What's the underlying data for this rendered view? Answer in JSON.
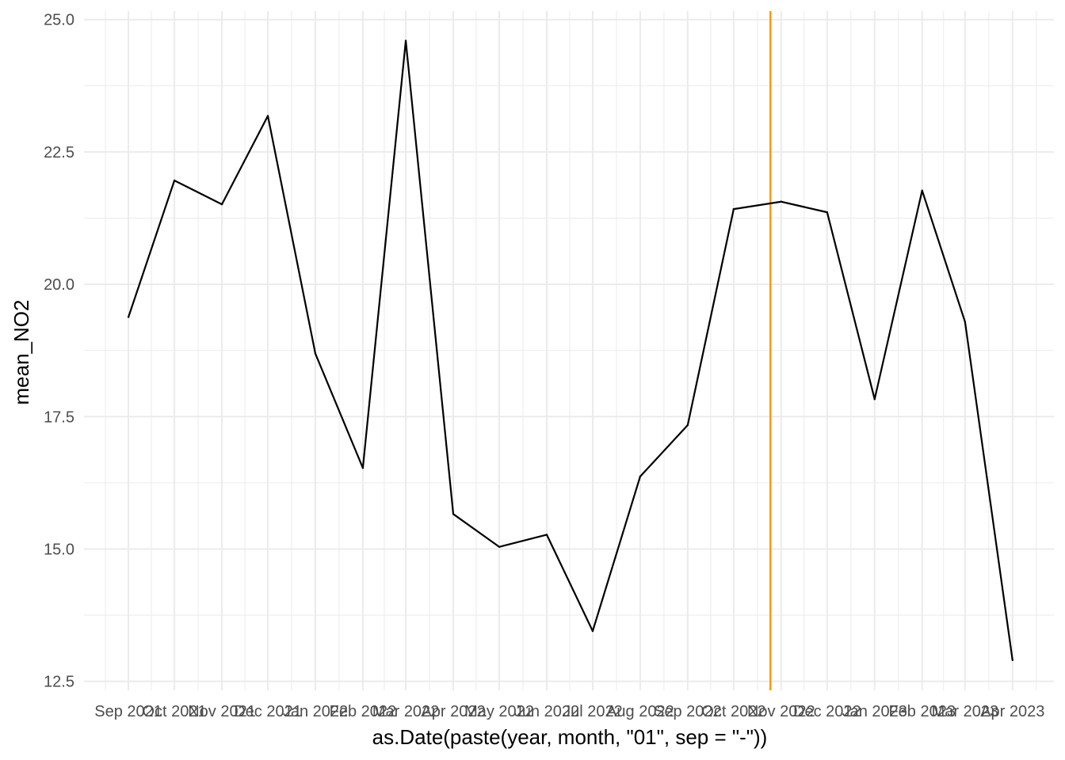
{
  "chart_data": {
    "type": "line",
    "xlabel": "as.Date(paste(year, month, \"01\", sep = \"-\"))",
    "ylabel": "mean_NO2",
    "x_is_date": true,
    "x": [
      "2021-09-01",
      "2021-10-01",
      "2021-11-01",
      "2021-12-01",
      "2022-01-01",
      "2022-02-01",
      "2022-03-01",
      "2022-04-01",
      "2022-05-01",
      "2022-06-01",
      "2022-07-01",
      "2022-08-01",
      "2022-09-01",
      "2022-10-01",
      "2022-11-01",
      "2022-12-01",
      "2023-01-01",
      "2023-02-01",
      "2023-03-01",
      "2023-04-01"
    ],
    "series": [
      {
        "values": [
          19.38,
          21.96,
          21.51,
          23.18,
          18.69,
          16.53,
          24.6,
          15.66,
          15.04,
          15.27,
          13.45,
          16.37,
          17.34,
          21.42,
          21.56,
          21.36,
          17.83,
          21.77,
          19.29,
          12.9
        ],
        "color": "#000000"
      }
    ],
    "x_tick_labels": [
      "Sep 2021",
      "Oct 2021",
      "Nov 2021",
      "Dec 2021",
      "Jan 2022",
      "Feb 2022",
      "Mar 2022",
      "Apr 2022",
      "May 2022",
      "Jun 2022",
      "Jul 2022",
      "Aug 2022",
      "Sep 2022",
      "Oct 2022",
      "Nov 2022",
      "Dec 2022",
      "Jan 2023",
      "Feb 2023",
      "Mar 2023",
      "Apr 2023"
    ],
    "xlim": [
      "2021-08-03",
      "2023-04-28"
    ],
    "y_ticks": [
      12.5,
      15.0,
      17.5,
      20.0,
      22.5,
      25.0
    ],
    "y_tick_labels": [
      "12.5",
      "15.0",
      "17.5",
      "20.0",
      "22.5",
      "25.0"
    ],
    "ylim": [
      12.33,
      25.16
    ],
    "reference_line": {
      "x": "2022-10-25",
      "color": "#f39c12"
    },
    "grid": true,
    "legend": "none",
    "colors": {
      "grid": "#ebebeb",
      "line": "#000000",
      "reference": "#f39c12",
      "tick_text": "#4d4d4d"
    }
  }
}
